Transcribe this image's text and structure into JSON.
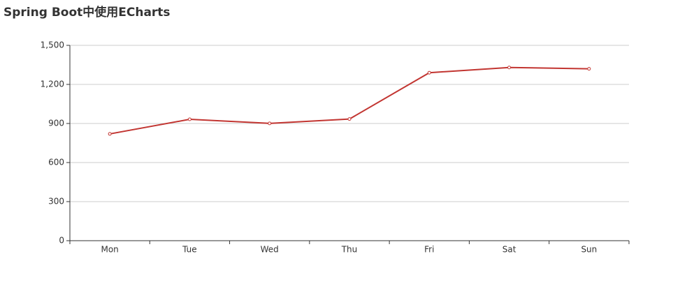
{
  "chart_data": {
    "type": "line",
    "title": "Spring Boot中使用ECharts",
    "categories": [
      "Mon",
      "Tue",
      "Wed",
      "Thu",
      "Fri",
      "Sat",
      "Sun"
    ],
    "series": [
      {
        "color": "#c23531",
        "values": [
          820,
          932,
          901,
          934,
          1290,
          1330,
          1320
        ]
      }
    ],
    "ylim": [
      0,
      1500
    ],
    "yticks": [
      0,
      300,
      600,
      900,
      {
        "value": 1200,
        "label": "1,200"
      },
      {
        "value": 1500,
        "label": "1,500"
      }
    ],
    "grid": true
  }
}
